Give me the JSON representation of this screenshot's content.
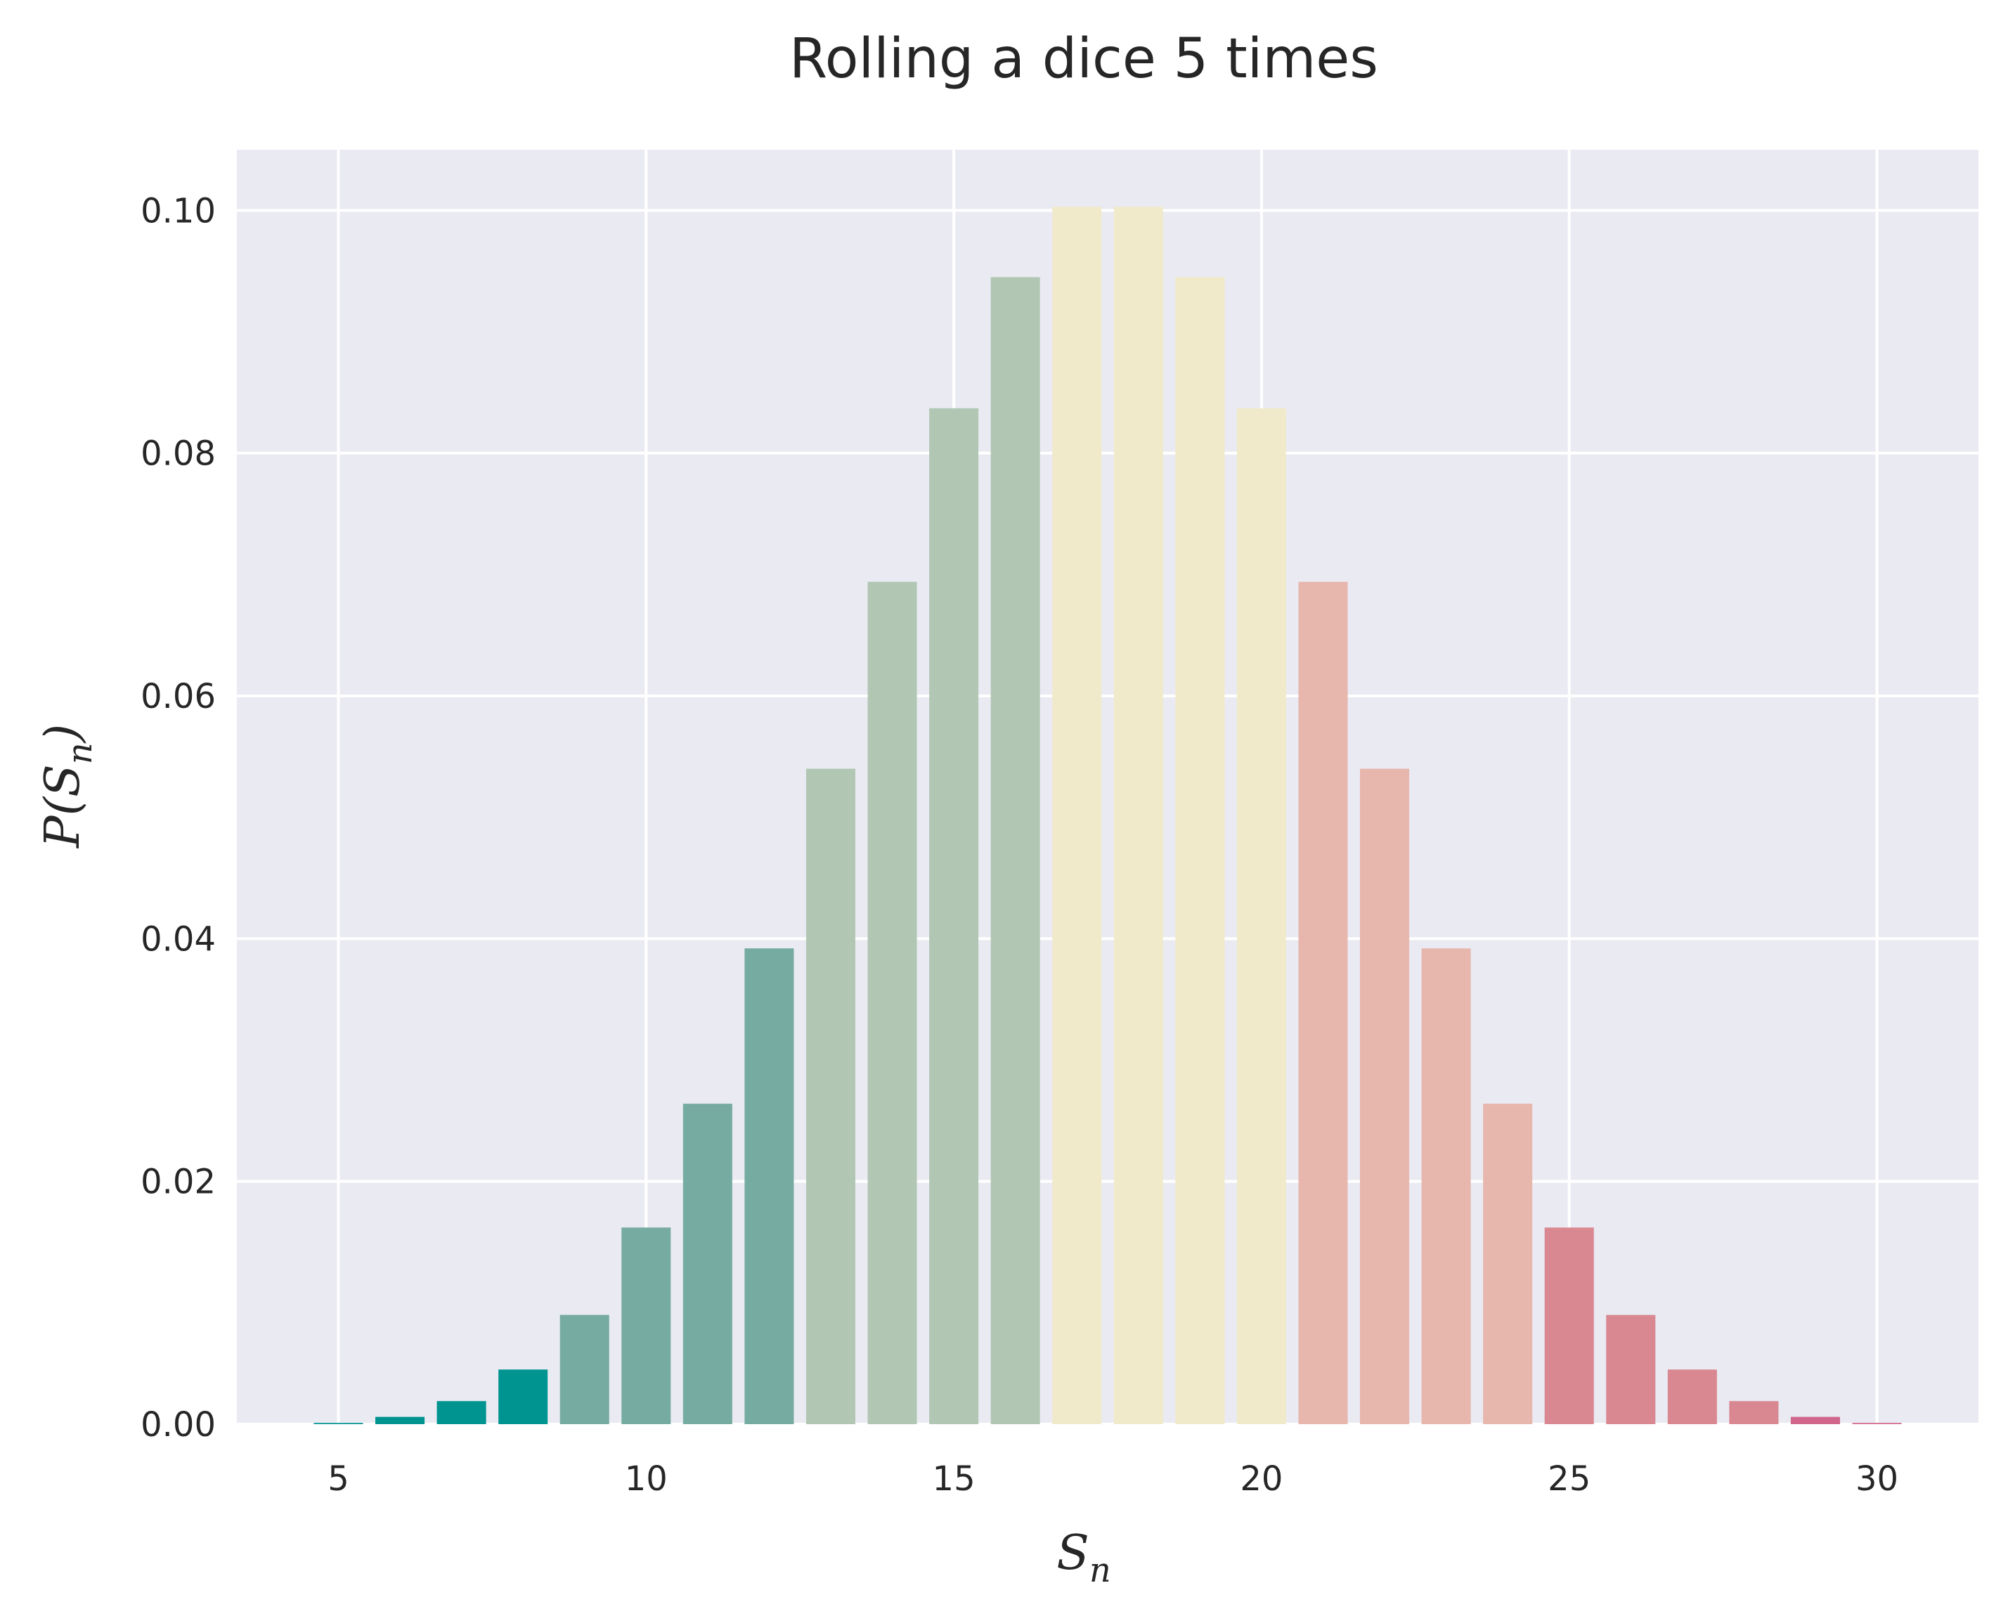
{
  "chart_data": {
    "type": "bar",
    "title": "Rolling a dice 5 times",
    "xlabel": {
      "main": "S",
      "sub": "n"
    },
    "ylabel": {
      "prefix": "P(",
      "main": "S",
      "sub": "n",
      "suffix": ")"
    },
    "xlim": [
      3.35,
      31.65
    ],
    "ylim": [
      0,
      0.105
    ],
    "xticks": [
      5,
      10,
      15,
      20,
      25,
      30
    ],
    "yticks": [
      0.0,
      0.02,
      0.04,
      0.06,
      0.08,
      0.1
    ],
    "ytick_labels": [
      "0.00",
      "0.02",
      "0.04",
      "0.06",
      "0.08",
      "0.10"
    ],
    "grid": true,
    "background": "#eaeaf2",
    "x": [
      5,
      6,
      7,
      8,
      9,
      10,
      11,
      12,
      13,
      14,
      15,
      16,
      17,
      18,
      19,
      20,
      21,
      22,
      23,
      24,
      25,
      26,
      27,
      28,
      29,
      30
    ],
    "values": [
      0.0001,
      0.0006,
      0.0019,
      0.0045,
      0.009,
      0.0162,
      0.0264,
      0.0392,
      0.054,
      0.0694,
      0.0837,
      0.0945,
      0.1003,
      0.1003,
      0.0945,
      0.0837,
      0.0694,
      0.054,
      0.0392,
      0.0264,
      0.0162,
      0.009,
      0.0045,
      0.0019,
      0.0006,
      0.0001
    ],
    "colors": [
      "#009491",
      "#009491",
      "#009491",
      "#009491",
      "#76aba2",
      "#76aba2",
      "#76aba2",
      "#76aba2",
      "#b1c7b4",
      "#b1c7b4",
      "#b1c7b4",
      "#b1c7b4",
      "#f0eacb",
      "#f0eacb",
      "#f0eacb",
      "#f0eacb",
      "#e7b6ad",
      "#e7b6ad",
      "#e7b6ad",
      "#e7b6ad",
      "#d98891",
      "#d98891",
      "#d98891",
      "#d98891",
      "#d0668a",
      "#d0668a"
    ]
  }
}
